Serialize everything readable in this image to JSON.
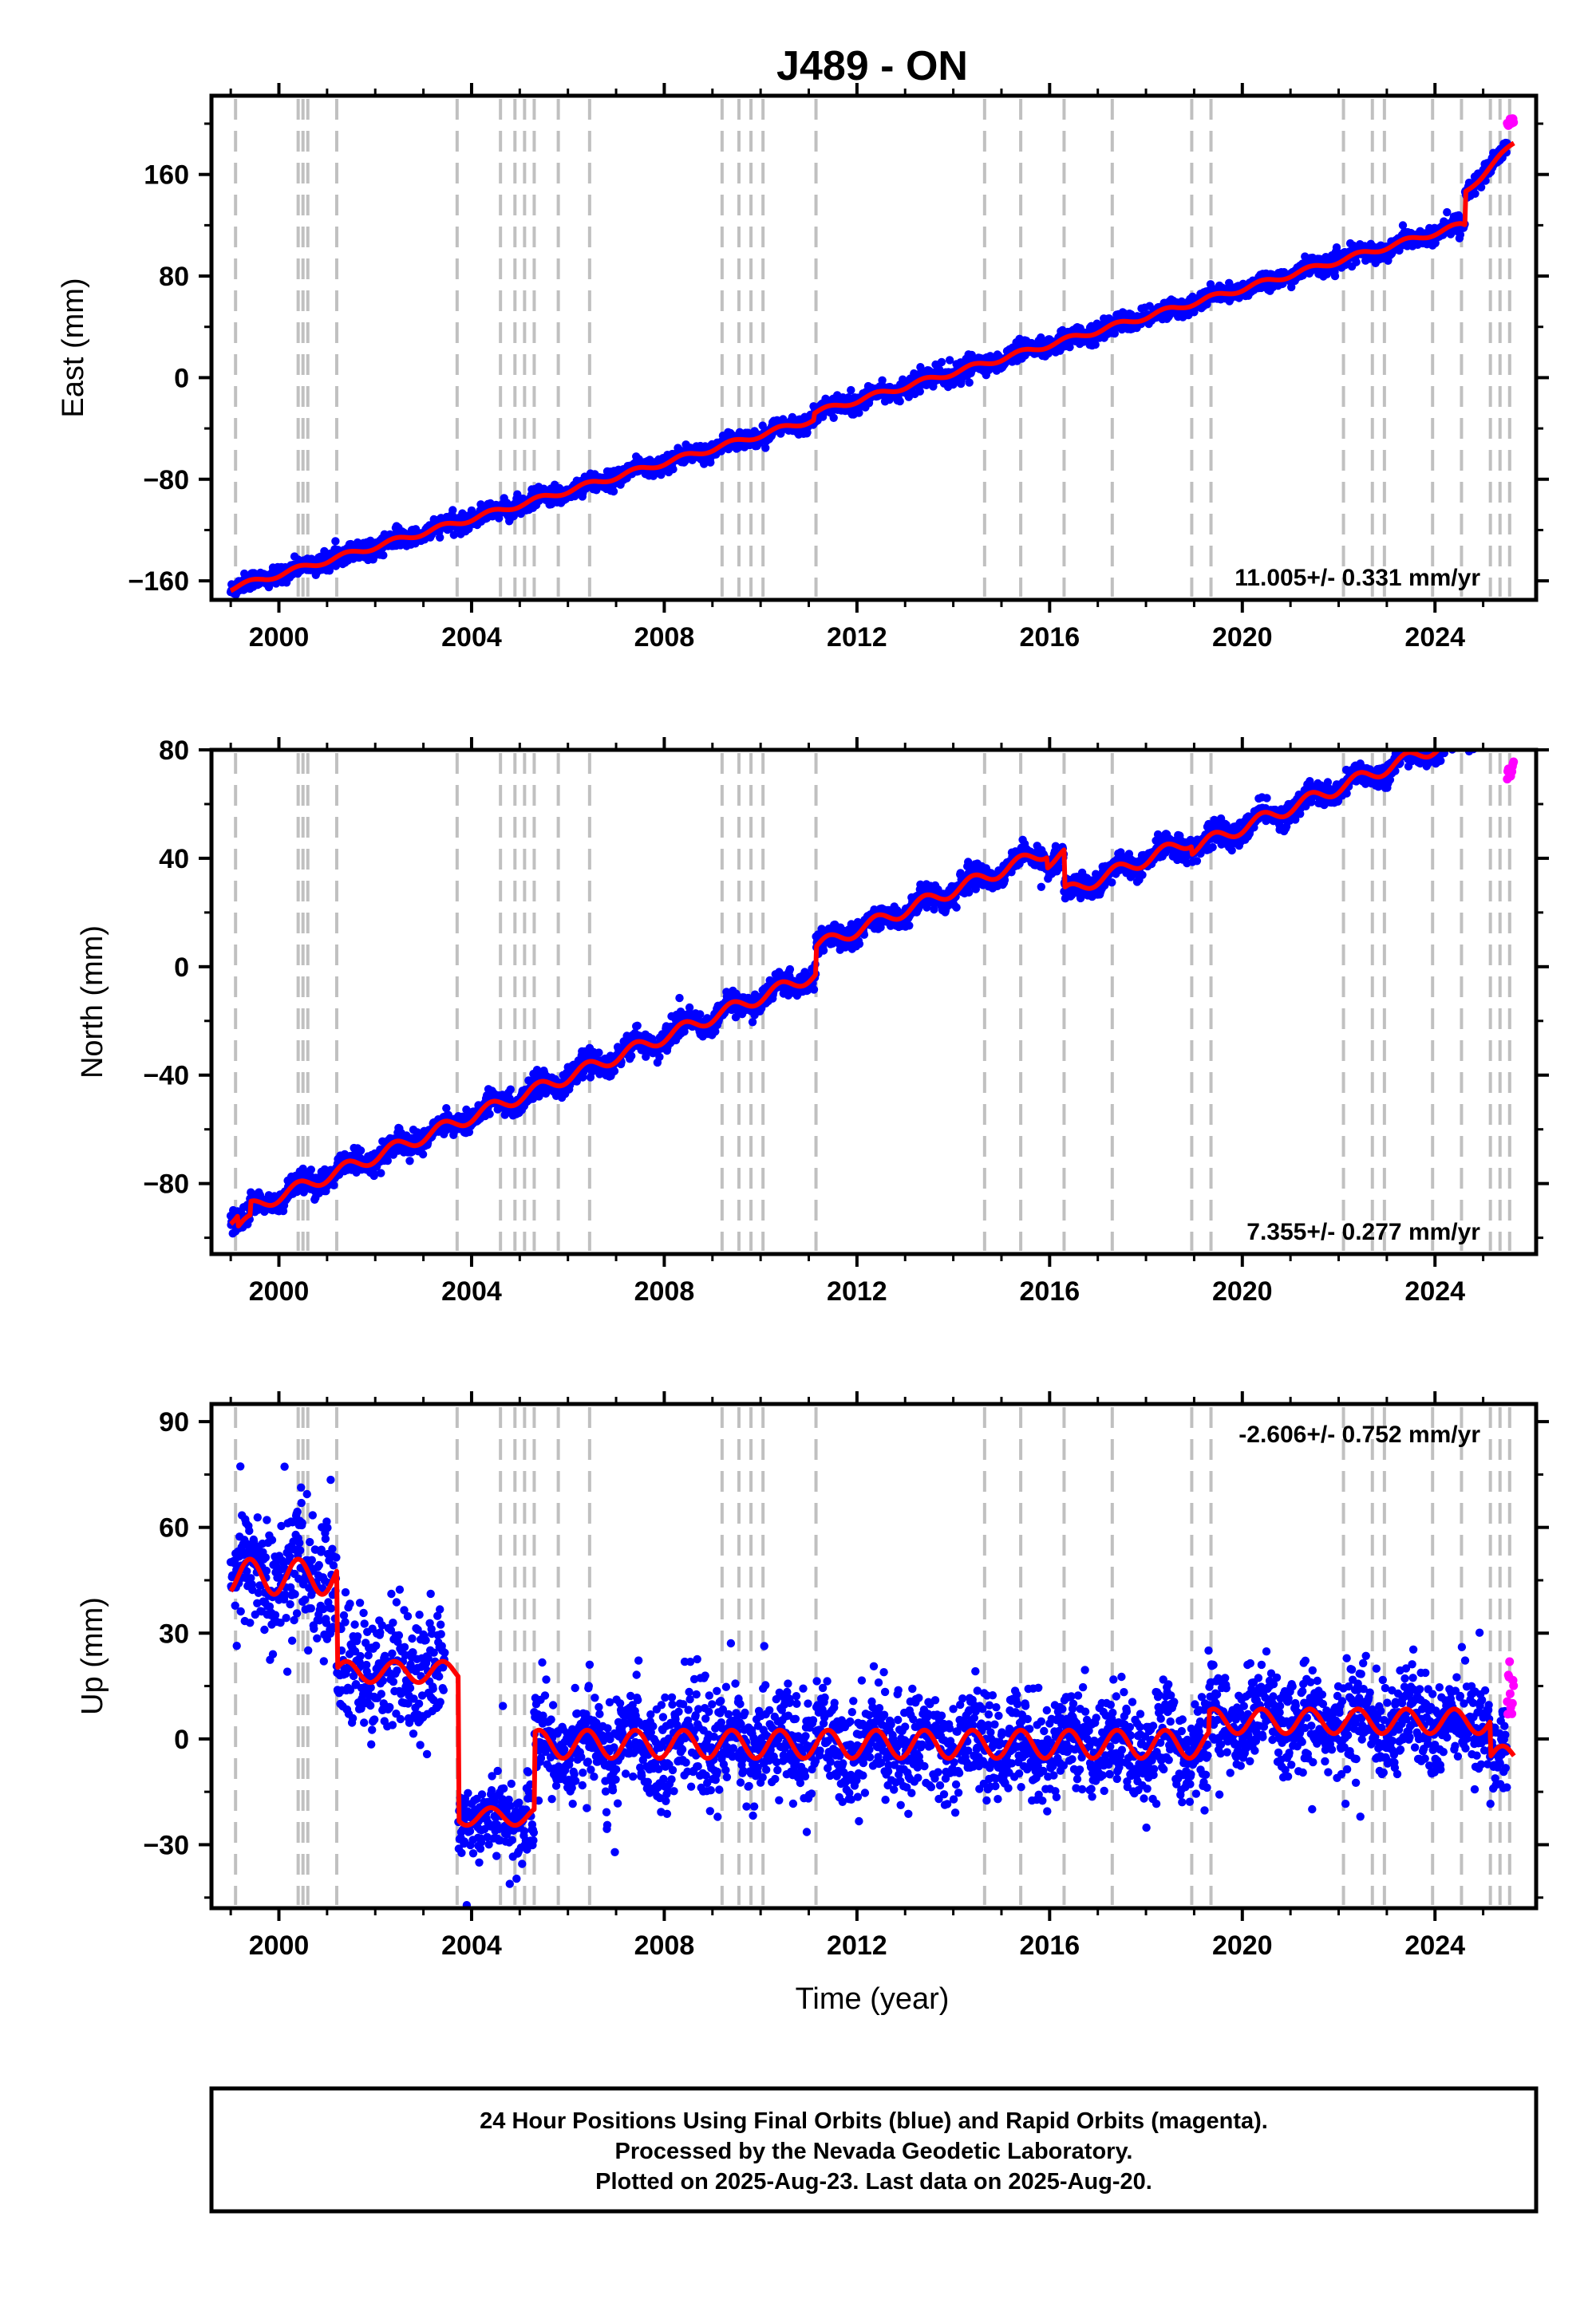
{
  "title": "J489 - ON",
  "footer": {
    "lines": [
      "24 Hour Positions Using Final Orbits (blue) and Rapid Orbits (magenta).",
      "Processed by the Nevada Geodetic Laboratory.",
      "Plotted on 2025-Aug-23. Last data on 2025-Aug-20."
    ]
  },
  "colors": {
    "final_orbits": "#0000ff",
    "rapid_orbits": "#ff00ff",
    "model_fit": "#ff0000",
    "event_lines": "#c0c0c0",
    "frame": "#000000"
  },
  "x_axis": {
    "label": "Time (year)",
    "ticks": [
      2000,
      2004,
      2008,
      2012,
      2016,
      2020,
      2024
    ],
    "tick_labels": [
      "2000",
      "2004",
      "2008",
      "2012",
      "2016",
      "2020",
      "2024"
    ],
    "xlim": [
      1998.6,
      2026.1
    ]
  },
  "event_lines_years": [
    1999.1,
    2000.4,
    2000.5,
    2000.6,
    2001.2,
    2003.7,
    2004.6,
    2004.9,
    2005.1,
    2005.3,
    2005.8,
    2006.45,
    2009.2,
    2009.55,
    2009.8,
    2010.05,
    2011.15,
    2014.65,
    2015.4,
    2016.3,
    2017.3,
    2018.95,
    2019.35,
    2022.1,
    2022.7,
    2022.95,
    2023.95,
    2024.55,
    2025.15,
    2025.35,
    2025.55
  ],
  "chart_data": [
    {
      "type": "scatter",
      "name": "east",
      "ylabel": "East (mm)",
      "ylim": [
        -175,
        222
      ],
      "yticks": [
        -160,
        -80,
        0,
        80,
        160
      ],
      "ytick_labels": [
        "−160",
        "−80",
        "0",
        "80",
        "160"
      ],
      "rate_label": "11.005+/- 0.331 mm/yr",
      "rate_position": "bottom-right",
      "x_ticks_shown": true,
      "x_label_shown": false,
      "trend": {
        "start": 1999.0,
        "end": 2024.55,
        "y0": -166,
        "slope": 11.0
      },
      "seasonal_amplitude": 2.2,
      "offsets": [
        {
          "year": 2011.1,
          "dy": 5
        },
        {
          "year": 2024.62,
          "dy": 25
        }
      ],
      "post_offset_slope": {
        "start": 2024.62,
        "slope": 38
      },
      "noise_sd": 3.4,
      "outlier_fraction": 0.004,
      "outlier_amplitude": 5,
      "rapid_segment": {
        "start": 2025.5,
        "end": 2025.64,
        "y_at_start": 198
      }
    },
    {
      "type": "scatter",
      "name": "north",
      "ylabel": "North (mm)",
      "ylim": [
        -106,
        80
      ],
      "yticks": [
        -80,
        -40,
        0,
        40,
        80
      ],
      "ytick_labels": [
        "−80",
        "−40",
        "0",
        "40",
        "80"
      ],
      "rate_label": "7.355+/- 0.277 mm/yr",
      "rate_position": "bottom-right",
      "x_ticks_shown": true,
      "x_label_shown": false,
      "trend": {
        "start": 1999.0,
        "end": 2025.64,
        "y0": -93,
        "slope": 7.35
      },
      "seasonal_amplitude": 2.4,
      "offsets": [
        {
          "year": 1999.15,
          "dy": -4
        },
        {
          "year": 1999.4,
          "dy": 5
        },
        {
          "year": 2011.15,
          "dy": 10
        },
        {
          "year": 2015.95,
          "dy": -4
        },
        {
          "year": 2016.3,
          "dy": -14
        },
        {
          "year": 2018.95,
          "dy": -3
        },
        {
          "year": 2024.5,
          "dy": 0
        }
      ],
      "noise_sd": 2.1,
      "outlier_fraction": 0.004,
      "outlier_amplitude": 4,
      "rapid_segment": {
        "start": 2025.5,
        "end": 2025.64,
        "y_at_start": 70
      }
    },
    {
      "type": "scatter",
      "name": "up",
      "ylabel": "Up (mm)",
      "ylim": [
        -48,
        95
      ],
      "yticks": [
        -30,
        0,
        30,
        60,
        90
      ],
      "ytick_labels": [
        "−30",
        "0",
        "30",
        "60",
        "90"
      ],
      "rate_label": "-2.606+/- 0.752 mm/yr",
      "rate_position": "top-right",
      "x_ticks_shown": true,
      "x_label_shown": true,
      "segments": [
        {
          "start": 1999.0,
          "end": 2001.2,
          "level": 46,
          "amp": 5
        },
        {
          "start": 2001.2,
          "end": 2003.72,
          "level": 19,
          "amp": 3
        },
        {
          "start": 2003.72,
          "end": 2005.3,
          "level": -22,
          "amp": 2.5
        },
        {
          "start": 2005.3,
          "end": 2019.3,
          "level": -1.5,
          "amp": 4
        },
        {
          "start": 2019.3,
          "end": 2025.15,
          "level": 5,
          "amp": 3.5
        },
        {
          "start": 2025.15,
          "end": 2025.64,
          "level": -5,
          "amp": 3
        }
      ],
      "scatter_segments": [
        {
          "start": 1999.0,
          "end": 2003.4,
          "level": 46,
          "sd": 9
        },
        {
          "start": 2003.4,
          "end": 2005.3,
          "level": -22,
          "sd": 5.5
        },
        {
          "start": 2005.3,
          "end": 2019.3,
          "level": -1.5,
          "sd": 7
        },
        {
          "start": 2019.3,
          "end": 2025.64,
          "level": 5,
          "sd": 7
        }
      ],
      "outlier_fraction": 0.01,
      "outlier_amplitude": 12,
      "rapid_segment": {
        "start": 2025.5,
        "end": 2025.64,
        "y_at_start": 12
      }
    }
  ]
}
